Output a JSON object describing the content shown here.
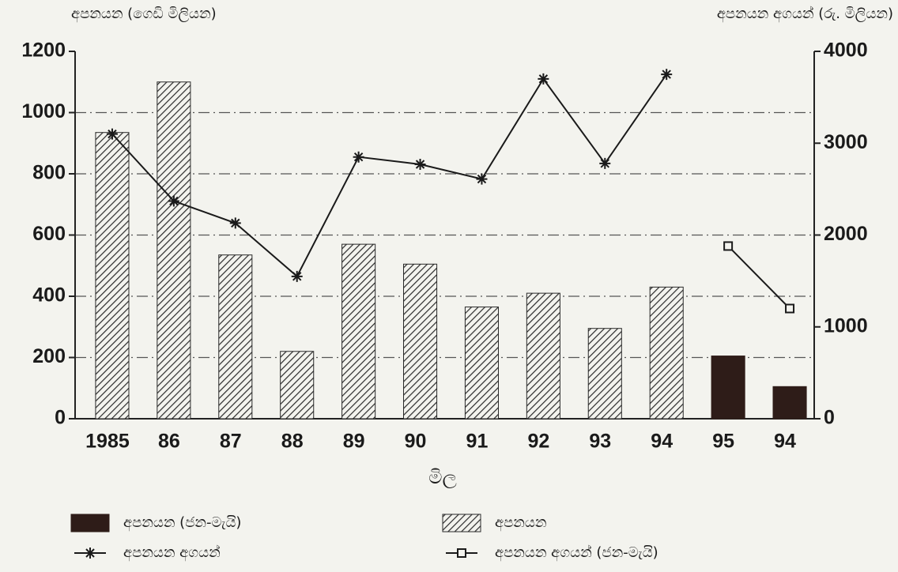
{
  "chart_data": {
    "type": "bar",
    "y_label": "අපනයන (ගෙඩි මිලියන)",
    "y2_label": "අපනයන අගයන් (රු. මිලියන)",
    "x_label": "මිල",
    "categories": [
      "1985",
      "86",
      "87",
      "88",
      "89",
      "90",
      "91",
      "92",
      "93",
      "94",
      "95",
      "94"
    ],
    "series": [
      {
        "name": "අපනයන (ජන-මැයි)",
        "type": "bar",
        "color": "#2e1c18",
        "values": [
          null,
          null,
          null,
          null,
          null,
          null,
          null,
          null,
          null,
          null,
          205,
          105
        ]
      },
      {
        "name": "අපනයන",
        "type": "bar",
        "pattern": "hatch",
        "color": "#2a2a2a",
        "values": [
          935,
          1100,
          535,
          220,
          570,
          505,
          365,
          410,
          295,
          430,
          null,
          null
        ]
      },
      {
        "name": "අපනයන අගයන්",
        "type": "line",
        "marker": "star",
        "axis": "y2",
        "color": "#1a1a1a",
        "values": [
          3100,
          2370,
          2130,
          1550,
          2850,
          2770,
          2610,
          3700,
          2780,
          3750,
          null,
          null
        ]
      },
      {
        "name": "අපනයන අගයන් (ජන-මැයි)",
        "type": "line",
        "marker": "square",
        "axis": "y2",
        "color": "#1a1a1a",
        "values": [
          null,
          null,
          null,
          null,
          null,
          null,
          null,
          null,
          null,
          null,
          1880,
          1200
        ]
      }
    ],
    "ylim": [
      0,
      1200
    ],
    "yticks": [
      0,
      200,
      400,
      600,
      800,
      1000,
      1200
    ],
    "y2lim": [
      0,
      4000
    ],
    "y2ticks": [
      0,
      1000,
      2000,
      3000,
      4000
    ],
    "grid": true
  }
}
